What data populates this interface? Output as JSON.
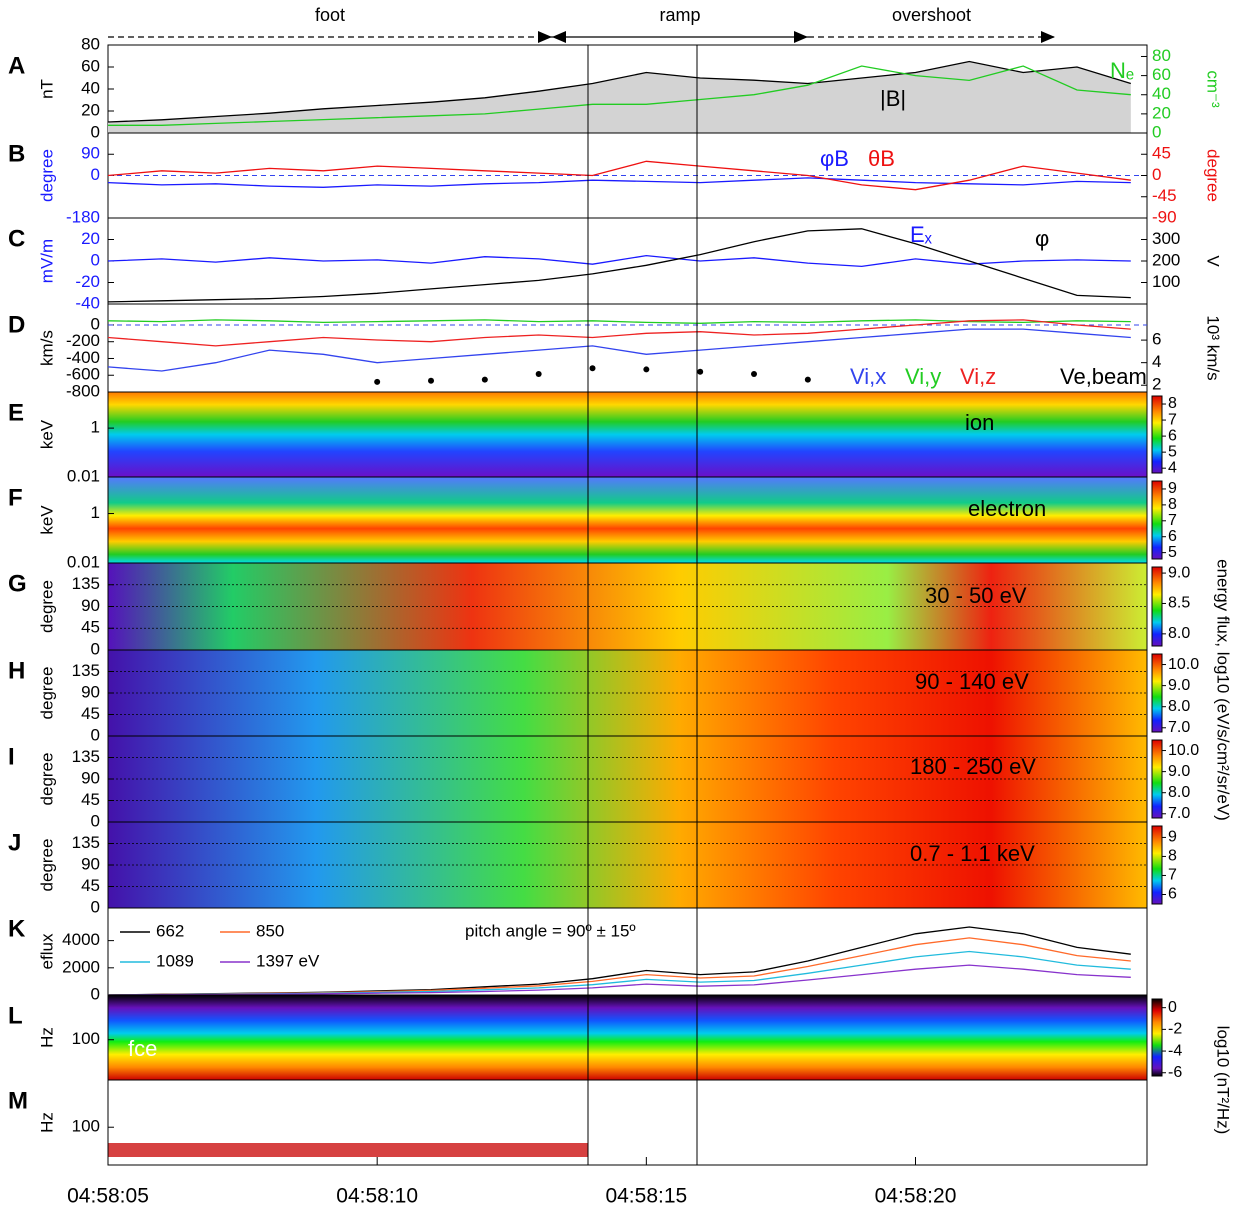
{
  "time_axis": {
    "xlim": [
      0,
      19.3
    ],
    "xticks": [
      {
        "value": 0,
        "label": "04:58:05"
      },
      {
        "value": 5,
        "label": "04:58:10"
      },
      {
        "value": 10,
        "label": "04:58:15"
      },
      {
        "value": 15,
        "label": "04:58:20"
      }
    ],
    "x": [
      0,
      1,
      2,
      3,
      4,
      5,
      6,
      7,
      8,
      9,
      10,
      11,
      12,
      13,
      14,
      15,
      16,
      17,
      18,
      19
    ]
  },
  "phases": [
    "foot",
    "ramp",
    "overshoot"
  ],
  "flux_colorbar_label": "energy flux, log10 (eV/s/cm²/sr/eV)",
  "chart_data": [
    {
      "type": "line",
      "label": "A",
      "ylabel": "nT",
      "ylim": [
        0,
        80
      ],
      "yticks": [
        0,
        20,
        40,
        60,
        80
      ],
      "y2label": "cm⁻³",
      "y2lim": [
        0,
        92
      ],
      "y2ticks": [
        0,
        20,
        40,
        60,
        80
      ],
      "y2color": "#22cc22",
      "series": [
        {
          "name": "|B|",
          "color": "#000000",
          "fill": "#d3d3d3",
          "values": [
            10,
            12,
            15,
            18,
            22,
            25,
            28,
            32,
            38,
            45,
            55,
            50,
            48,
            45,
            50,
            55,
            65,
            55,
            60,
            45
          ]
        },
        {
          "name": "Nₑ",
          "color": "#22cc22",
          "axis": "y2",
          "values": [
            8,
            8,
            10,
            12,
            14,
            16,
            18,
            20,
            25,
            30,
            30,
            35,
            40,
            50,
            70,
            60,
            55,
            70,
            45,
            40
          ]
        }
      ]
    },
    {
      "type": "line",
      "label": "B",
      "ylabel": "degree",
      "ycolor": "#1a1aff",
      "ylim": [
        -180,
        180
      ],
      "yticks": [
        -180,
        0,
        90
      ],
      "y2label": "degree",
      "y2color": "#ee1111",
      "y2lim": [
        -90,
        90
      ],
      "y2ticks": [
        -90,
        -45,
        0,
        45
      ],
      "zero_line": true,
      "series": [
        {
          "name": "φB",
          "color": "#1a1aff",
          "values": [
            -30,
            -40,
            -35,
            -45,
            -50,
            -40,
            -45,
            -35,
            -30,
            -20,
            -25,
            -30,
            -20,
            -10,
            -20,
            -30,
            -35,
            -40,
            -25,
            -30
          ]
        },
        {
          "name": "θB",
          "color": "#ee1111",
          "axis": "y2",
          "values": [
            0,
            10,
            5,
            15,
            10,
            20,
            15,
            10,
            5,
            0,
            30,
            20,
            10,
            0,
            -20,
            -30,
            -10,
            20,
            5,
            -10
          ]
        }
      ]
    },
    {
      "type": "line",
      "label": "C",
      "ylabel": "mV/m",
      "ycolor": "#1a1aff",
      "ylim": [
        -40,
        40
      ],
      "yticks": [
        -40,
        -20,
        0,
        20
      ],
      "y2label": "V",
      "y2lim": [
        0,
        400
      ],
      "y2ticks": [
        100,
        200,
        300
      ],
      "series": [
        {
          "name": "Eₓ",
          "color": "#1a1aff",
          "values": [
            0,
            2,
            -1,
            3,
            0,
            1,
            -2,
            4,
            2,
            -3,
            5,
            0,
            3,
            -2,
            -5,
            2,
            -3,
            0,
            1,
            0
          ]
        },
        {
          "name": "φ",
          "color": "#000000",
          "axis": "y2",
          "values": [
            10,
            15,
            20,
            25,
            35,
            50,
            70,
            90,
            110,
            140,
            180,
            230,
            290,
            340,
            350,
            280,
            200,
            120,
            40,
            30
          ]
        }
      ]
    },
    {
      "type": "line",
      "label": "D",
      "ylabel": "km/s",
      "ylim": [
        -800,
        250
      ],
      "yticks": [
        -800,
        -600,
        -400,
        -200,
        0
      ],
      "y2label": "10³ km/s",
      "y2lim": [
        1.4,
        9.2
      ],
      "y2ticks": [
        2,
        4,
        6
      ],
      "zero_line": true,
      "series": [
        {
          "name": "Vi,x",
          "color": "#3344ee",
          "values": [
            -500,
            -550,
            -450,
            -300,
            -350,
            -450,
            -400,
            -350,
            -300,
            -250,
            -350,
            -300,
            -250,
            -200,
            -150,
            -100,
            -50,
            -50,
            -100,
            -150
          ]
        },
        {
          "name": "Vi,y",
          "color": "#22cc22",
          "values": [
            50,
            40,
            60,
            50,
            30,
            40,
            50,
            60,
            40,
            50,
            30,
            20,
            40,
            30,
            50,
            60,
            40,
            30,
            50,
            40
          ]
        },
        {
          "name": "Vi,z",
          "color": "#ee2222",
          "values": [
            -150,
            -200,
            -250,
            -200,
            -150,
            -180,
            -200,
            -150,
            -120,
            -150,
            -100,
            -80,
            -120,
            -100,
            -50,
            0,
            50,
            60,
            0,
            -50
          ]
        },
        {
          "name": "Ve,beam",
          "color": "#000000",
          "axis": "y2",
          "marker": "dot",
          "values": [
            null,
            null,
            null,
            null,
            null,
            2.3,
            2.4,
            2.5,
            3.0,
            3.5,
            3.4,
            3.2,
            3.0,
            2.5,
            null,
            null,
            null,
            null,
            null,
            null
          ]
        }
      ]
    },
    {
      "type": "spectrogram",
      "label": "E",
      "ylabel": "keV",
      "log": true,
      "ylim": [
        0.01,
        30
      ],
      "yticks": [
        0.01,
        1
      ],
      "clim": [
        3.7,
        8.5
      ],
      "cticks": [
        4,
        5,
        6,
        7,
        8
      ],
      "annotation": "ion"
    },
    {
      "type": "spectrogram",
      "label": "F",
      "ylabel": "keV",
      "log": true,
      "ylim": [
        0.01,
        30
      ],
      "yticks": [
        0.01,
        1
      ],
      "clim": [
        4.6,
        9.5
      ],
      "cticks": [
        5,
        6,
        7,
        8,
        9
      ],
      "annotation": "electron"
    },
    {
      "type": "spectrogram",
      "label": "G",
      "ylabel": "degree",
      "ylim": [
        0,
        180
      ],
      "yticks": [
        0,
        45,
        90,
        135
      ],
      "grid": true,
      "clim": [
        7.8,
        9.1
      ],
      "cticks": [
        {
          "value": 8,
          "label": "8.0"
        },
        8.5,
        {
          "value": 9,
          "label": "9.0"
        }
      ],
      "annotation": "30 - 50 eV"
    },
    {
      "type": "spectrogram",
      "label": "H",
      "ylabel": "degree",
      "ylim": [
        0,
        180
      ],
      "yticks": [
        0,
        45,
        90,
        135
      ],
      "grid": true,
      "clim": [
        6.8,
        10.5
      ],
      "cticks": [
        {
          "value": 7,
          "label": "7.0"
        },
        {
          "value": 8,
          "label": "8.0"
        },
        {
          "value": 9,
          "label": "9.0"
        },
        {
          "value": 10,
          "label": "10.0"
        }
      ],
      "annotation": "90 - 140 eV"
    },
    {
      "type": "spectrogram",
      "label": "I",
      "ylabel": "degree",
      "ylim": [
        0,
        180
      ],
      "yticks": [
        0,
        45,
        90,
        135
      ],
      "grid": true,
      "clim": [
        6.8,
        10.5
      ],
      "cticks": [
        {
          "value": 7,
          "label": "7.0"
        },
        {
          "value": 8,
          "label": "8.0"
        },
        {
          "value": 9,
          "label": "9.0"
        },
        {
          "value": 10,
          "label": "10.0"
        }
      ],
      "annotation": "180 - 250 eV"
    },
    {
      "type": "spectrogram",
      "label": "J",
      "ylabel": "degree",
      "ylim": [
        0,
        180
      ],
      "yticks": [
        0,
        45,
        90,
        135
      ],
      "grid": true,
      "clim": [
        5.5,
        9.6
      ],
      "cticks": [
        6,
        7,
        8,
        9
      ],
      "annotation": "0.7 - 1.1 keV"
    },
    {
      "type": "line",
      "label": "K",
      "ylabel": "eflux",
      "ylim": [
        0,
        6400
      ],
      "yticks": [
        2000,
        4000
      ],
      "annotation": "pitch angle = 90º ± 15º",
      "series": [
        {
          "name": "662",
          "color": "#000000",
          "values": [
            0,
            50,
            100,
            150,
            200,
            300,
            400,
            600,
            800,
            1200,
            1800,
            1500,
            1700,
            2500,
            3500,
            4500,
            5000,
            4500,
            3500,
            3000
          ]
        },
        {
          "name": "850",
          "color": "#ff6a2a",
          "values": [
            0,
            40,
            80,
            120,
            170,
            250,
            340,
            500,
            680,
            1000,
            1500,
            1250,
            1400,
            2100,
            2900,
            3700,
            4200,
            3700,
            2900,
            2500
          ]
        },
        {
          "name": "1089",
          "color": "#22bbdd",
          "values": [
            0,
            30,
            60,
            90,
            130,
            190,
            260,
            380,
            520,
            760,
            1150,
            950,
            1070,
            1600,
            2200,
            2800,
            3200,
            2800,
            2200,
            1900
          ]
        },
        {
          "name": "1397 eV",
          "color": "#8833cc",
          "values": [
            0,
            20,
            40,
            60,
            90,
            130,
            180,
            260,
            360,
            520,
            800,
            650,
            740,
            1100,
            1500,
            1900,
            2200,
            1900,
            1500,
            1300
          ]
        }
      ]
    },
    {
      "type": "spectrogram",
      "label": "L",
      "ylabel": "Hz",
      "ylim": [
        190,
        0
      ],
      "yticks": [
        0,
        100
      ],
      "clim": [
        -6.3,
        0.8
      ],
      "cticks": [
        0,
        -2,
        -4,
        -6
      ],
      "colorbar_label": "log10 (nT²/Hz)",
      "annotation": "fce"
    },
    {
      "type": "spectrogram",
      "label": "M",
      "ylabel": "Hz",
      "ylim": [
        180,
        0
      ],
      "yticks": [
        100
      ]
    }
  ]
}
